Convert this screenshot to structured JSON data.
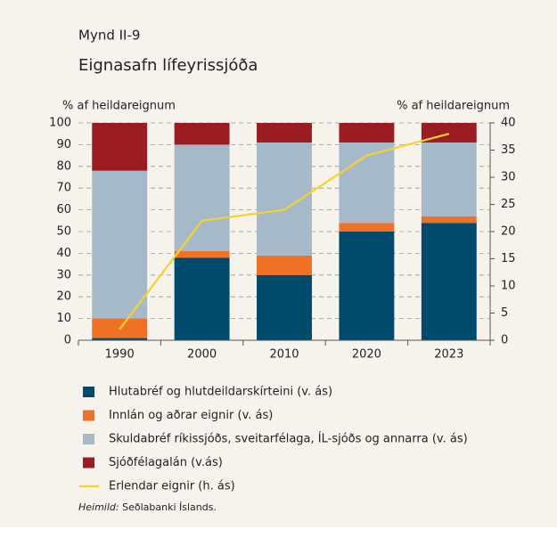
{
  "chart_data": {
    "type": "bar",
    "stacked": true,
    "title": "Mynd II-9",
    "subtitle": "Eignasafn lífeyrissjóða",
    "ylabel": "% af heildareignum",
    "y2label": "% af heildareignum",
    "categories": [
      "1990",
      "2000",
      "2010",
      "2020",
      "2023"
    ],
    "series": [
      {
        "name": "Hlutabréf og hlutdeildarskírteini (v. ás)",
        "color": "#004a6b",
        "values": [
          1,
          38,
          30,
          50,
          54
        ]
      },
      {
        "name": "Innlán og aðrar eignir (v. ás)",
        "color": "#ef7125",
        "values": [
          9,
          3,
          9,
          4,
          3
        ]
      },
      {
        "name": "Skuldabréf ríkissjóðs, sveitarfélaga, ÍL-sjóðs og annarra (v. ás)",
        "color": "#a6b9c8",
        "values": [
          68,
          49,
          52,
          37,
          34
        ]
      },
      {
        "name": "Sjóðfélagalán (v.ás)",
        "color": "#9b1c23",
        "values": [
          22,
          10,
          9,
          9,
          9
        ]
      },
      {
        "name": "Erlendar eignir (h. ás)",
        "color": "#f6d22a",
        "type": "line",
        "axis": "y2",
        "values": [
          2,
          22,
          24,
          34,
          38
        ]
      }
    ],
    "ylim": [
      0,
      100
    ],
    "yticks": [
      0,
      10,
      20,
      30,
      40,
      50,
      60,
      70,
      80,
      90,
      100
    ],
    "y2lim": [
      0,
      40
    ],
    "y2ticks": [
      0,
      5,
      10,
      15,
      20,
      25,
      30,
      35,
      40
    ],
    "grid": true,
    "source_label": "Heimild:",
    "source_text": "Seðlabanki Íslands."
  }
}
